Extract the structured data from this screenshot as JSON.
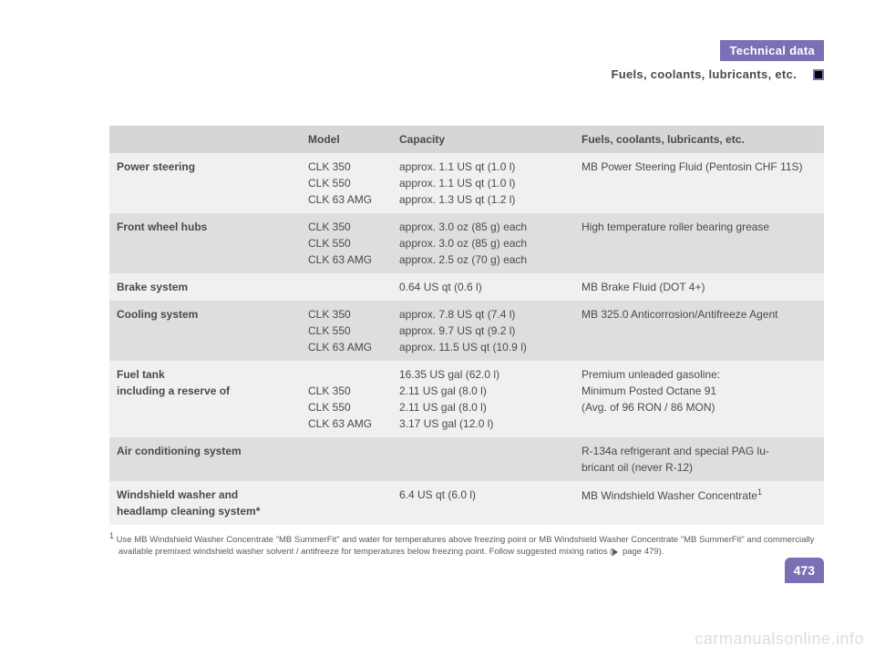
{
  "header": {
    "chapter": "Technical data",
    "section": "Fuels, coolants, lubricants, etc."
  },
  "page_number": "473",
  "watermark": "carmanualsonline.info",
  "table": {
    "columns": [
      "",
      "Model",
      "Capacity",
      "Fuels, coolants, lubricants, etc."
    ],
    "rows": [
      {
        "shade": "light",
        "label": "Power steering",
        "model": "CLK 350\nCLK 550\nCLK 63 AMG",
        "capacity": "approx. 1.1 US qt (1.0 l)\napprox. 1.1 US qt (1.0 l)\napprox. 1.3 US qt (1.2 l)",
        "fluid": "MB Power Steering Fluid (Pentosin CHF 11S)"
      },
      {
        "shade": "dark",
        "label": "Front wheel hubs",
        "model": "CLK 350\nCLK 550\nCLK 63 AMG",
        "capacity": "approx. 3.0 oz (85 g) each\napprox. 3.0 oz (85 g) each\napprox. 2.5 oz (70 g) each",
        "fluid": "High temperature roller bearing grease"
      },
      {
        "shade": "light",
        "label": "Brake system",
        "model": "",
        "capacity": "0.64 US qt (0.6 l)",
        "fluid": "MB Brake Fluid (DOT 4+)"
      },
      {
        "shade": "dark",
        "label": "Cooling system",
        "model": "CLK 350\nCLK 550\nCLK 63 AMG",
        "capacity": "approx. 7.8 US qt (7.4 l)\napprox. 9.7 US qt (9.2 l)\napprox. 11.5 US qt (10.9 l)",
        "fluid": "MB 325.0 Anticorrosion/Antifreeze Agent"
      },
      {
        "shade": "light",
        "label": "Fuel tank\nincluding a reserve of",
        "model": "\nCLK 350\nCLK 550\nCLK 63 AMG",
        "capacity": "16.35 US gal (62.0 l)\n2.11 US gal (8.0 l)\n2.11 US gal (8.0 l)\n3.17 US gal (12.0 l)",
        "fluid": "Premium unleaded gasoline:\nMinimum Posted Octane 91\n(Avg. of 96 RON / 86 MON)"
      },
      {
        "shade": "dark",
        "label": "Air conditioning system",
        "model": "",
        "capacity": "",
        "fluid": "R-134a refrigerant and special PAG lu-\nbricant oil (never R-12)"
      },
      {
        "shade": "light",
        "label": "Windshield washer and\nheadlamp cleaning system*",
        "model": "",
        "capacity": "6.4 US qt (6.0 l)",
        "fluid": "MB Windshield Washer Concentrate",
        "fluid_sup": "1"
      }
    ]
  },
  "footnote": {
    "marker": "1",
    "text_a": "Use MB Windshield Washer Concentrate \"MB SummerFit\" and water for temperatures above freezing point or MB Windshield Washer Concentrate \"MB SummerFit\" and commercially available premixed windshield washer solvent / antifreeze for temperatures below freezing point. Follow suggested mixing ratios (",
    "text_b": " page 479)."
  },
  "colors": {
    "accent": "#7a70b5",
    "header_row": "#d6d6d6",
    "row_light": "#f0f0f0",
    "row_dark": "#dedede",
    "text": "#4a4a4a",
    "watermark": "#dddddd"
  }
}
